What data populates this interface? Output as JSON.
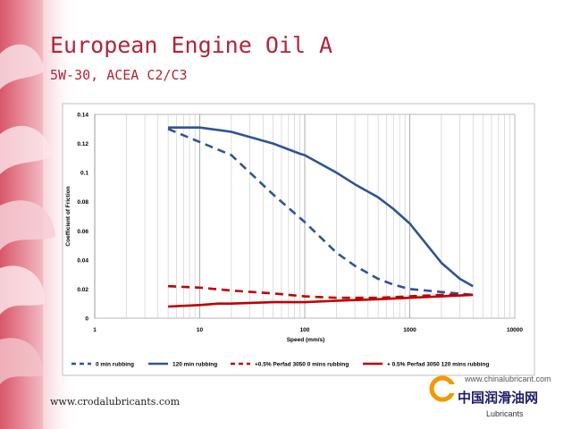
{
  "slide": {
    "title": "European Engine Oil A",
    "subtitle": "5W-30, ACEA C2/C3",
    "footer": "www.crodalubricants.com"
  },
  "watermark": {
    "url": "www.chinalubricant.com",
    "name": "中国润滑油网",
    "tagline": "Lubricants",
    "logo_color": "#f39800"
  },
  "colors": {
    "title": "#b3243a",
    "blue": "#2f5496",
    "red": "#c00000"
  },
  "chart_data": {
    "type": "line",
    "title": "",
    "xlabel": "Speed (mm/s)",
    "ylabel": "Coefficient of Friction",
    "x_scale": "log",
    "xlim": [
      1,
      10000
    ],
    "ylim": [
      0,
      0.14
    ],
    "x_ticks": [
      1,
      10,
      100,
      1000,
      10000
    ],
    "x_tick_labels": [
      "1",
      "10",
      "100",
      "1000",
      "10000"
    ],
    "y_ticks": [
      0,
      0.02,
      0.04,
      0.06,
      0.08,
      0.1,
      0.12,
      0.14
    ],
    "y_tick_labels": [
      "0",
      "0.02",
      "0.04",
      "0.06",
      "0.08",
      "0.1",
      "0.12",
      "0.14"
    ],
    "grid": "vertical-log",
    "legend_position": "bottom",
    "series": [
      {
        "name": "0 min rubbing",
        "color": "#2f5496",
        "style": "dashed",
        "x": [
          5,
          10,
          20,
          30,
          50,
          100,
          200,
          300,
          500,
          700,
          1000,
          2000,
          4000
        ],
        "y": [
          0.13,
          0.121,
          0.112,
          0.1,
          0.085,
          0.066,
          0.045,
          0.036,
          0.027,
          0.023,
          0.02,
          0.018,
          0.016
        ]
      },
      {
        "name": "120 min rubbing",
        "color": "#2f5496",
        "style": "solid",
        "x": [
          5,
          10,
          20,
          50,
          90,
          100,
          200,
          300,
          500,
          700,
          1000,
          2000,
          3000,
          4000
        ],
        "y": [
          0.131,
          0.131,
          0.128,
          0.12,
          0.113,
          0.112,
          0.1,
          0.092,
          0.083,
          0.075,
          0.065,
          0.038,
          0.027,
          0.022
        ]
      },
      {
        "name": "+0.5% Perfad 3050 0 mins rubbing",
        "color": "#c00000",
        "style": "dashed",
        "x": [
          5,
          10,
          20,
          50,
          100,
          200,
          500,
          1000,
          2000,
          4000
        ],
        "y": [
          0.022,
          0.021,
          0.019,
          0.017,
          0.015,
          0.014,
          0.014,
          0.015,
          0.016,
          0.016
        ]
      },
      {
        "name": "+ 0.5% Perfad 3050 120 mins rubbing",
        "color": "#c00000",
        "style": "solid",
        "x": [
          5,
          10,
          15,
          20,
          50,
          100,
          200,
          500,
          1000,
          2000,
          4000
        ],
        "y": [
          0.008,
          0.009,
          0.01,
          0.01,
          0.011,
          0.011,
          0.012,
          0.013,
          0.014,
          0.015,
          0.016
        ]
      }
    ]
  }
}
